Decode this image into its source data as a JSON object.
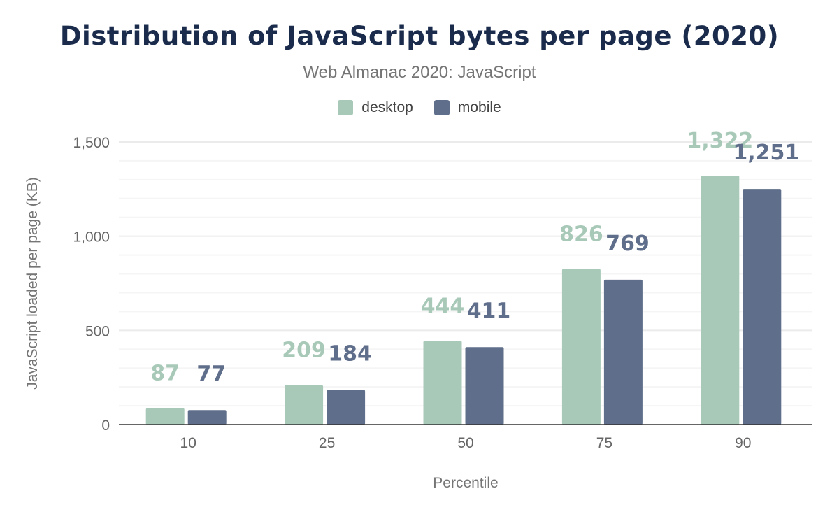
{
  "chart_data": {
    "type": "bar",
    "title": "Distribution of JavaScript bytes per page (2020)",
    "subtitle": "Web Almanac 2020: JavaScript",
    "xlabel": "Percentile",
    "ylabel": "JavaScript loaded per page (KB)",
    "categories": [
      "10",
      "25",
      "50",
      "75",
      "90"
    ],
    "series": [
      {
        "name": "desktop",
        "color": "#a8c9b8",
        "values": [
          87,
          209,
          444,
          826,
          1322
        ],
        "labels": [
          "87",
          "209",
          "444",
          "826",
          "1,322"
        ]
      },
      {
        "name": "mobile",
        "color": "#5f6e8a",
        "values": [
          77,
          184,
          411,
          769,
          1251
        ],
        "labels": [
          "77",
          "184",
          "411",
          "769",
          "1,251"
        ]
      }
    ],
    "ylim": [
      0,
      1500
    ],
    "yticks": [
      0,
      500,
      1000,
      1500
    ],
    "ytick_labels": [
      "0",
      "500",
      "1,000",
      "1,500"
    ],
    "minor_grid_step": 100,
    "grid": true,
    "legend_position": "top-center"
  }
}
